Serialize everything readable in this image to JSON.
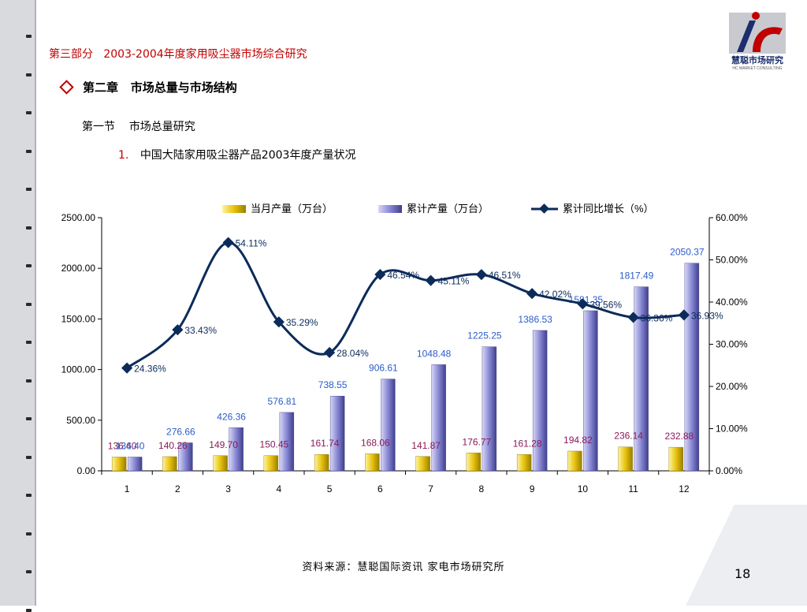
{
  "header": {
    "part": "第三部分",
    "title": "2003-2004年度家用吸尘器市场综合研究"
  },
  "chapter": {
    "label": "第二章",
    "title": "市场总量与市场结构"
  },
  "section": {
    "label": "第一节",
    "title": "市场总量研究"
  },
  "item": {
    "number": "1.",
    "title": "中国大陆家用吸尘器产品2003年度产量状况"
  },
  "logo": {
    "name": "慧聪市场研究",
    "subtitle": "HC MARKET CONSULTING"
  },
  "footer": {
    "source": "资料来源：慧聪国际资讯 家电市场研究所",
    "page": "18"
  },
  "colors": {
    "monthly_bar": "#e7c20b",
    "cumulative_bar": "#8787d4",
    "line": "#0b2b5a",
    "header_red": "#c00000",
    "label_blue": "#2a5cc8",
    "label_magenta": "#8b1a5a"
  },
  "chart_data": {
    "type": "bar",
    "categories": [
      "1",
      "2",
      "3",
      "4",
      "5",
      "6",
      "7",
      "8",
      "9",
      "10",
      "11",
      "12"
    ],
    "legend_position": "top",
    "series": [
      {
        "name": "当月产量（万台）",
        "type": "bar",
        "axis": "left",
        "values": [
          136.4,
          140.26,
          149.7,
          150.45,
          161.74,
          168.06,
          141.87,
          176.77,
          161.28,
          194.82,
          236.14,
          232.88
        ],
        "labels": [
          "136.40",
          "140.26",
          "149.70",
          "150.45",
          "161.74",
          "168.06",
          "141.87",
          "176.77",
          "161.28",
          "194.82",
          "236.14",
          "232.88"
        ]
      },
      {
        "name": "累计产量（万台）",
        "type": "bar",
        "axis": "left",
        "values": [
          136.4,
          276.66,
          426.36,
          576.81,
          738.55,
          906.61,
          1048.48,
          1225.25,
          1386.53,
          1581.35,
          1817.49,
          2050.37
        ],
        "labels": [
          "136.40",
          "276.66",
          "426.36",
          "576.81",
          "738.55",
          "906.61",
          "1048.48",
          "1225.25",
          "1386.53",
          "1581.35",
          "1817.49",
          "2050.37"
        ]
      },
      {
        "name": "累计同比增长（%）",
        "type": "line",
        "axis": "right",
        "values": [
          24.36,
          33.43,
          54.11,
          35.29,
          28.04,
          46.54,
          45.11,
          46.51,
          42.02,
          39.56,
          36.36,
          36.93
        ],
        "labels": [
          "24.36%",
          "33.43%",
          "54.11%",
          "35.29%",
          "28.04%",
          "46.54%",
          "45.11%",
          "46.51%",
          "42.02%",
          "39.56%",
          "36.36%",
          "36.93%"
        ]
      }
    ],
    "y_left": {
      "ylim": [
        0,
        2500
      ],
      "ticks": [
        0,
        500,
        1000,
        1500,
        2000,
        2500
      ],
      "tick_labels": [
        "0.00",
        "500.00",
        "1000.00",
        "1500.00",
        "2000.00",
        "2500.00"
      ]
    },
    "y_right": {
      "ylim": [
        0,
        60
      ],
      "ticks": [
        0,
        10,
        20,
        30,
        40,
        50,
        60
      ],
      "tick_labels": [
        "0.00%",
        "10.00%",
        "20.00%",
        "30.00%",
        "40.00%",
        "50.00%",
        "60.00%"
      ]
    },
    "grid": false
  }
}
